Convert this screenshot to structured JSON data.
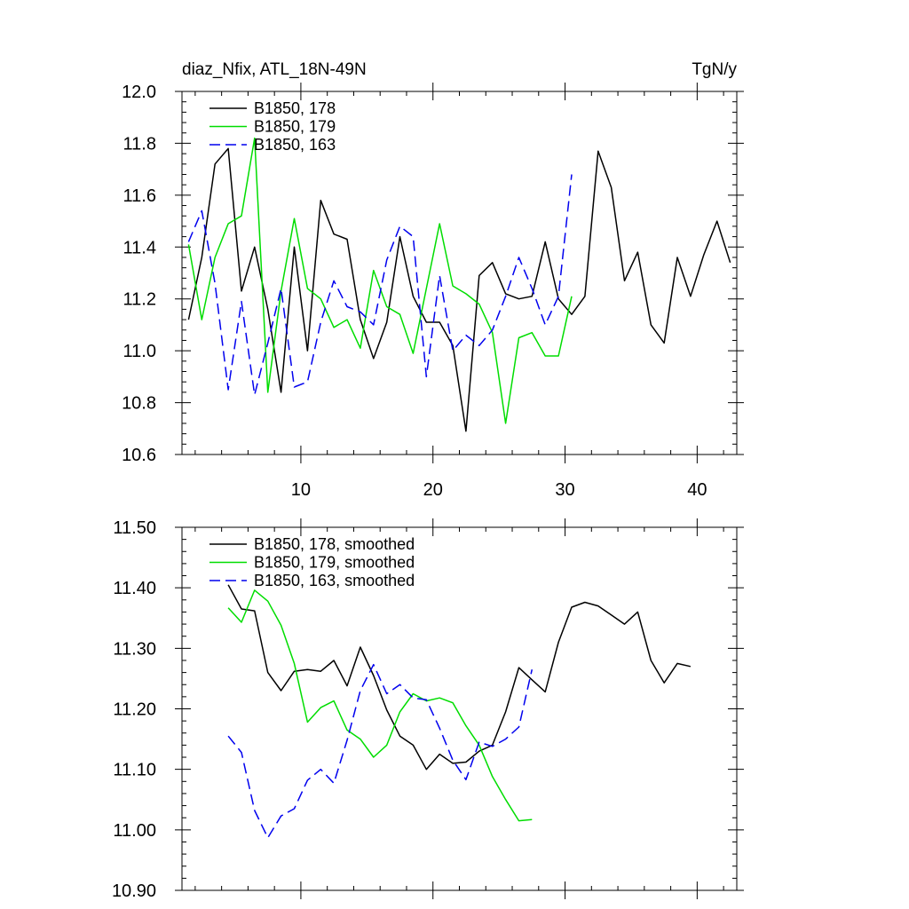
{
  "chart_data": [
    {
      "type": "line",
      "title": "diaz_Nfix, ATL_18N-49N",
      "units": "TgN/y",
      "xlim": [
        1,
        43
      ],
      "ylim": [
        10.6,
        12.0
      ],
      "xticks": [
        10,
        20,
        30,
        40
      ],
      "xtick_labels": [
        "10",
        "20",
        "30",
        "40"
      ],
      "yticks": [
        10.6,
        10.8,
        11.0,
        11.2,
        11.4,
        11.6,
        11.8,
        12.0
      ],
      "ytick_labels": [
        "10.6",
        "10.8",
        "11.0",
        "11.2",
        "11.4",
        "11.6",
        "11.8",
        "12.0"
      ],
      "legend_position": "top-left",
      "series": [
        {
          "name": "B1850, 178",
          "color": "#000000",
          "dash": "solid",
          "x": [
            1.5,
            2.5,
            3.5,
            4.5,
            5.5,
            6.5,
            7.5,
            8.5,
            9.5,
            10.5,
            11.5,
            12.5,
            13.5,
            14.5,
            15.5,
            16.5,
            17.5,
            18.5,
            19.5,
            20.5,
            21.5,
            22.5,
            23.5,
            24.5,
            25.5,
            26.5,
            27.5,
            28.5,
            29.5,
            30.5,
            31.5,
            32.5,
            33.5,
            34.5,
            35.5,
            36.5,
            37.5,
            38.5,
            39.5,
            40.5,
            41.5,
            42.5
          ],
          "y": [
            11.12,
            11.36,
            11.72,
            11.78,
            11.23,
            11.4,
            11.16,
            10.84,
            11.4,
            11.0,
            11.58,
            11.45,
            11.43,
            11.12,
            10.97,
            11.11,
            11.44,
            11.21,
            11.11,
            11.11,
            11.02,
            10.69,
            11.29,
            11.34,
            11.22,
            11.2,
            11.21,
            11.42,
            11.2,
            11.14,
            11.21,
            11.77,
            11.63,
            11.27,
            11.38,
            11.1,
            11.03,
            11.36,
            11.21,
            11.37,
            11.5,
            11.34
          ]
        },
        {
          "name": "B1850, 179",
          "color": "#00dd00",
          "dash": "solid",
          "x": [
            1.5,
            2.5,
            3.5,
            4.5,
            5.5,
            6.5,
            7.5,
            8.5,
            9.5,
            10.5,
            11.5,
            12.5,
            13.5,
            14.5,
            15.5,
            16.5,
            17.5,
            18.5,
            19.5,
            20.5,
            21.5,
            22.5,
            23.5,
            24.5,
            25.5,
            26.5,
            27.5,
            28.5,
            29.5,
            30.5
          ],
          "y": [
            11.41,
            11.12,
            11.36,
            11.49,
            11.52,
            11.82,
            10.84,
            11.23,
            11.51,
            11.24,
            11.2,
            11.09,
            11.12,
            11.01,
            11.31,
            11.17,
            11.14,
            10.99,
            11.24,
            11.49,
            11.25,
            11.22,
            11.18,
            11.07,
            10.72,
            11.05,
            11.07,
            10.98,
            10.98,
            11.21
          ]
        },
        {
          "name": "B1850, 163",
          "color": "#0000ee",
          "dash": "dashed",
          "x": [
            1.5,
            2.5,
            3.5,
            4.5,
            5.5,
            6.5,
            7.5,
            8.5,
            9.5,
            10.5,
            11.5,
            12.5,
            13.5,
            14.5,
            15.5,
            16.5,
            17.5,
            18.5,
            19.5,
            20.5,
            21.5,
            22.5,
            23.5,
            24.5,
            25.5,
            26.5,
            27.5,
            28.5,
            29.5,
            30.5
          ],
          "y": [
            11.42,
            11.54,
            11.26,
            10.85,
            11.19,
            10.83,
            11.03,
            11.24,
            10.86,
            10.88,
            11.11,
            11.27,
            11.17,
            11.15,
            11.1,
            11.35,
            11.48,
            11.44,
            10.9,
            11.29,
            11.0,
            11.06,
            11.02,
            11.08,
            11.21,
            11.36,
            11.24,
            11.1,
            11.21,
            11.68
          ]
        }
      ]
    },
    {
      "type": "line",
      "title": "",
      "xlim": [
        1,
        43
      ],
      "ylim": [
        10.9,
        11.5
      ],
      "xticks": [
        10,
        20,
        30,
        40
      ],
      "yticks": [
        10.9,
        11.0,
        11.1,
        11.2,
        11.3,
        11.4,
        11.5
      ],
      "ytick_labels": [
        "10.90",
        "11.00",
        "11.10",
        "11.20",
        "11.30",
        "11.40",
        "11.50"
      ],
      "legend_position": "top-left",
      "series": [
        {
          "name": "B1850, 178, smoothed",
          "color": "#000000",
          "dash": "solid",
          "x": [
            4.5,
            5.5,
            6.5,
            7.5,
            8.5,
            9.5,
            10.5,
            11.5,
            12.5,
            13.5,
            14.5,
            15.5,
            16.5,
            17.5,
            18.5,
            19.5,
            20.5,
            21.5,
            22.5,
            23.5,
            24.5,
            25.5,
            26.5,
            27.5,
            28.5,
            29.5,
            30.5,
            31.5,
            32.5,
            33.5,
            34.5,
            35.5,
            36.5,
            37.5,
            38.5,
            39.5
          ],
          "y": [
            11.405,
            11.365,
            11.362,
            11.26,
            11.23,
            11.262,
            11.265,
            11.262,
            11.28,
            11.238,
            11.302,
            11.255,
            11.198,
            11.155,
            11.14,
            11.1,
            11.125,
            11.11,
            11.112,
            11.13,
            11.14,
            11.195,
            11.268,
            11.248,
            11.228,
            11.31,
            11.368,
            11.376,
            11.37,
            11.355,
            11.34,
            11.36,
            11.28,
            11.243,
            11.275,
            11.27
          ]
        },
        {
          "name": "B1850, 179, smoothed",
          "color": "#00dd00",
          "dash": "solid",
          "x": [
            4.5,
            5.5,
            6.5,
            7.5,
            8.5,
            9.5,
            10.5,
            11.5,
            12.5,
            13.5,
            14.5,
            15.5,
            16.5,
            17.5,
            18.5,
            19.5,
            20.5,
            21.5,
            22.5,
            23.5,
            24.5,
            25.5,
            26.5,
            27.5
          ],
          "y": [
            11.367,
            11.343,
            11.396,
            11.378,
            11.338,
            11.275,
            11.178,
            11.202,
            11.213,
            11.165,
            11.15,
            11.12,
            11.14,
            11.195,
            11.225,
            11.213,
            11.218,
            11.21,
            11.172,
            11.14,
            11.088,
            11.05,
            11.015,
            11.017
          ]
        },
        {
          "name": "B1850, 163, smoothed",
          "color": "#0000ee",
          "dash": "dashed",
          "x": [
            4.5,
            5.5,
            6.5,
            7.5,
            8.5,
            9.5,
            10.5,
            11.5,
            12.5,
            13.5,
            14.5,
            15.5,
            16.5,
            17.5,
            18.5,
            19.5,
            20.5,
            21.5,
            22.5,
            23.5,
            24.5,
            25.5,
            26.5,
            27.5
          ],
          "y": [
            11.155,
            11.128,
            11.032,
            10.987,
            11.023,
            11.035,
            11.082,
            11.1,
            11.077,
            11.148,
            11.23,
            11.273,
            11.225,
            11.24,
            11.218,
            11.215,
            11.168,
            11.115,
            11.083,
            11.145,
            11.138,
            11.15,
            11.17,
            11.265
          ]
        }
      ]
    }
  ]
}
